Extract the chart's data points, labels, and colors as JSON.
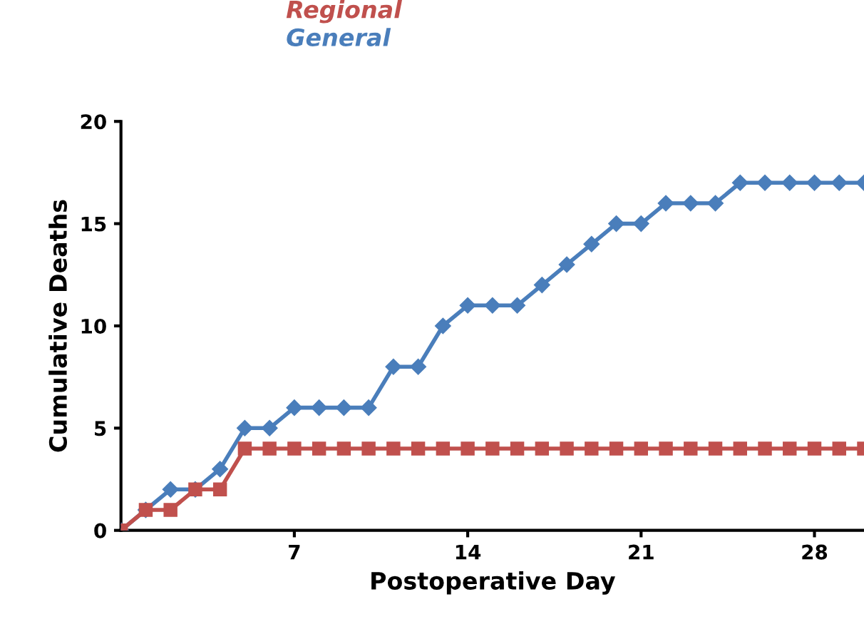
{
  "chart_data": {
    "type": "line",
    "xlabel": "Postoperative Day",
    "ylabel": "Cumulative Deaths",
    "x": [
      0,
      1,
      2,
      3,
      4,
      5,
      6,
      7,
      8,
      9,
      10,
      11,
      12,
      13,
      14,
      15,
      16,
      17,
      18,
      19,
      20,
      21,
      22,
      23,
      24,
      25,
      26,
      27,
      28,
      29,
      30
    ],
    "series": [
      {
        "name": "Regional",
        "color": "#c0504d",
        "marker": "square",
        "values": [
          0,
          1,
          1,
          2,
          2,
          4,
          4,
          4,
          4,
          4,
          4,
          4,
          4,
          4,
          4,
          4,
          4,
          4,
          4,
          4,
          4,
          4,
          4,
          4,
          4,
          4,
          4,
          4,
          4,
          4,
          4
        ]
      },
      {
        "name": "General",
        "color": "#4a7ebb",
        "marker": "diamond",
        "values": [
          0,
          1,
          2,
          2,
          3,
          5,
          5,
          6,
          6,
          6,
          6,
          8,
          8,
          10,
          11,
          11,
          11,
          12,
          13,
          14,
          15,
          15,
          16,
          16,
          16,
          17,
          17,
          17,
          17,
          17,
          17
        ]
      }
    ],
    "xlim": [
      0,
      30
    ],
    "xticks": [
      7,
      14,
      21,
      28
    ],
    "ylim": [
      0,
      20
    ],
    "yticks": [
      0,
      5,
      10,
      15,
      20
    ],
    "grid": false,
    "legend": "top",
    "line_style": "solid"
  }
}
